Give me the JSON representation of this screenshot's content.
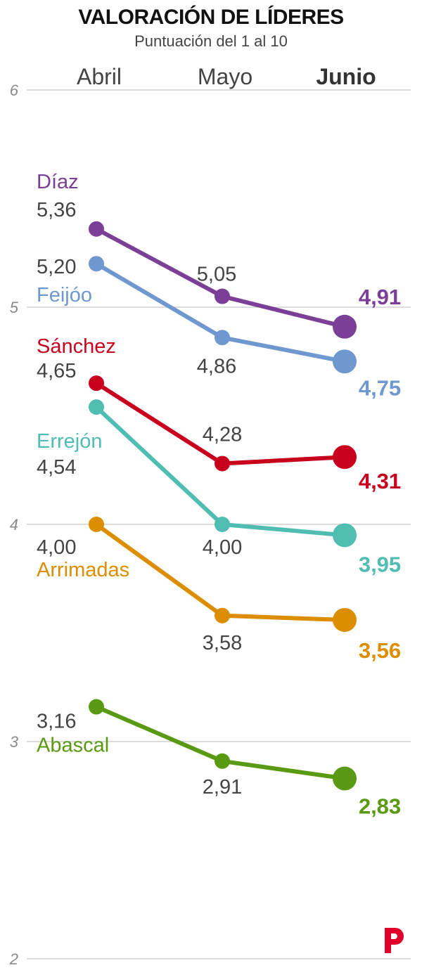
{
  "chart_data": {
    "type": "line",
    "title": "VALORACIÓN DE LÍDERES",
    "subtitle": "Puntuación del 1 al 10",
    "categories": [
      "Abril",
      "Mayo",
      "Junio"
    ],
    "highlight_category": "Junio",
    "ylim": [
      2,
      6
    ],
    "yticks": [
      2,
      3,
      4,
      5,
      6
    ],
    "grid": true,
    "series": [
      {
        "name": "Díaz",
        "color": "#7b3f98",
        "values": [
          5.36,
          5.05,
          4.91
        ],
        "labels": [
          "5,36",
          "5,05",
          "4,91"
        ]
      },
      {
        "name": "Feijóo",
        "color": "#6f98d1",
        "values": [
          5.2,
          4.86,
          4.75
        ],
        "labels": [
          "5,20",
          "4,86",
          "4,75"
        ]
      },
      {
        "name": "Sánchez",
        "color": "#c8001e",
        "values": [
          4.65,
          4.28,
          4.31
        ],
        "labels": [
          "4,65",
          "4,28",
          "4,31"
        ]
      },
      {
        "name": "Errejón",
        "color": "#4fbdb1",
        "values": [
          4.54,
          4.0,
          3.95
        ],
        "labels": [
          "4,54",
          "4,00",
          "3,95"
        ]
      },
      {
        "name": "Arrimadas",
        "color": "#dc8d00",
        "values": [
          4.0,
          3.58,
          3.56
        ],
        "labels": [
          "4,00",
          "3,58",
          "3,56"
        ]
      },
      {
        "name": "Abascal",
        "color": "#5a9a12",
        "values": [
          3.16,
          2.91,
          2.83
        ],
        "labels": [
          "3,16",
          "2,91",
          "2,83"
        ]
      }
    ]
  },
  "brand": {
    "logo_icon": "red-p-logo-icon",
    "logo_color": "#e0002a"
  }
}
